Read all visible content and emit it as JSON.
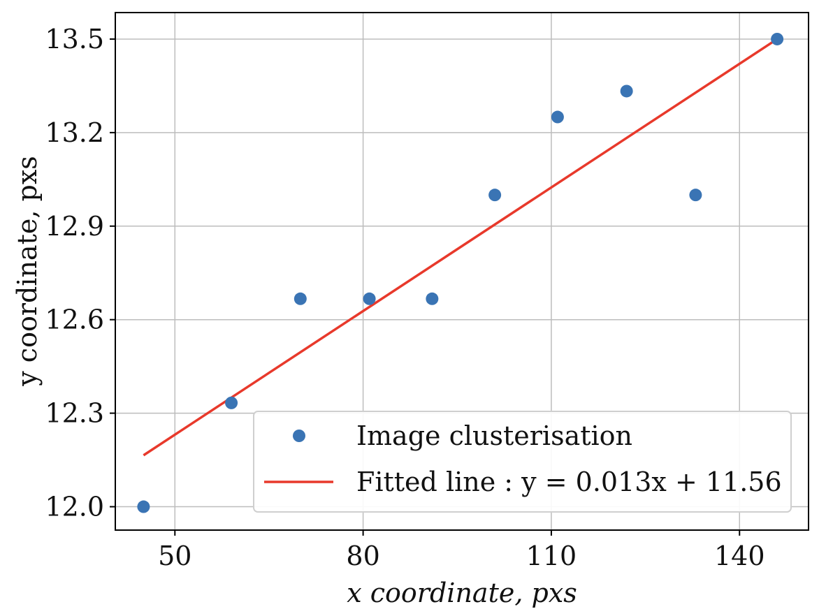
{
  "chart_data": {
    "type": "scatter",
    "title": "",
    "xlabel": "x coordinate,  pxs",
    "ylabel": "y coordinate,  pxs",
    "xlim": [
      40.5,
      151
    ],
    "ylim": [
      11.925,
      13.585
    ],
    "xticks": [
      50,
      80,
      110,
      140
    ],
    "yticks": [
      12.0,
      12.3,
      12.6,
      12.9,
      13.2,
      13.5
    ],
    "xtick_labels": [
      "50",
      "80",
      "110",
      "140"
    ],
    "ytick_labels": [
      "12.0",
      "12.3",
      "12.6",
      "12.9",
      "13.2",
      "13.5"
    ],
    "grid": true,
    "legend_position": "lower-right",
    "series": [
      {
        "name": "Image clusterisation",
        "kind": "scatter",
        "color": "#3a74b4",
        "x": [
          45,
          59,
          70,
          81,
          91,
          101,
          111,
          122,
          133,
          146
        ],
        "y": [
          12.0,
          12.333,
          12.667,
          12.667,
          12.667,
          13.0,
          13.25,
          13.333,
          13.0,
          13.5
        ]
      },
      {
        "name": "Fitted line : y = 0.013x + 11.56",
        "kind": "line",
        "color": "#e8392b",
        "slope": 0.013,
        "intercept": 11.56,
        "x": [
          45,
          146
        ],
        "y": [
          12.165,
          13.5
        ]
      }
    ]
  }
}
